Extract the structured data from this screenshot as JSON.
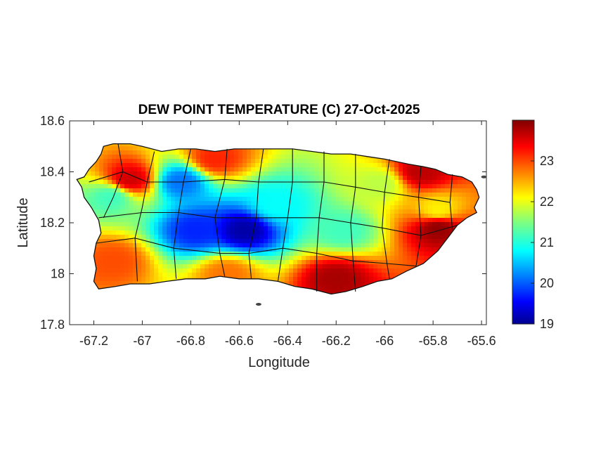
{
  "chart_data": {
    "type": "heatmap",
    "title": "DEW POINT TEMPERATURE (C) 27-Oct-2025",
    "xlabel": "Longitude",
    "ylabel": "Latitude",
    "xlim": [
      -67.3,
      -65.58
    ],
    "ylim": [
      17.8,
      18.6
    ],
    "x_ticks": [
      -67.2,
      -67,
      -66.8,
      -66.6,
      -66.4,
      -66.2,
      -66,
      -65.8,
      -65.6
    ],
    "x_tick_labels": [
      "-67.2",
      "-67",
      "-66.8",
      "-66.6",
      "-66.4",
      "-66.2",
      "-66",
      "-65.8",
      "-65.6"
    ],
    "y_ticks": [
      17.8,
      18,
      18.2,
      18.4,
      18.6
    ],
    "y_tick_labels": [
      "17.8",
      "18",
      "18.2",
      "18.4",
      "18.6"
    ],
    "colorbar": {
      "range": [
        19,
        24
      ],
      "ticks": [
        19,
        20,
        21,
        22,
        23
      ],
      "tick_labels": [
        "19",
        "20",
        "21",
        "22",
        "23"
      ],
      "colormap": "jet"
    },
    "grid": false,
    "field_description_values": [
      {
        "lon": -66.58,
        "lat": 18.17,
        "value": 19.2
      },
      {
        "lon": -66.78,
        "lat": 18.17,
        "value": 19.8
      },
      {
        "lon": -66.84,
        "lat": 18.36,
        "value": 20.2
      },
      {
        "lon": -66.45,
        "lat": 18.27,
        "value": 20.9
      },
      {
        "lon": -67.13,
        "lat": 18.3,
        "value": 21.2
      },
      {
        "lon": -66.17,
        "lat": 18.17,
        "value": 21.2
      },
      {
        "lon": -66.02,
        "lat": 18.35,
        "value": 21.8
      },
      {
        "lon": -65.78,
        "lat": 18.25,
        "value": 22.2
      },
      {
        "lon": -66.7,
        "lat": 18.45,
        "value": 23.2
      },
      {
        "lon": -67.05,
        "lat": 18.37,
        "value": 23.6
      },
      {
        "lon": -66.2,
        "lat": 17.98,
        "value": 23.8
      },
      {
        "lon": -65.78,
        "lat": 18.18,
        "value": 23.9
      },
      {
        "lon": -65.85,
        "lat": 18.4,
        "value": 23.7
      },
      {
        "lon": -67.12,
        "lat": 18.05,
        "value": 23.0
      },
      {
        "lon": -66.65,
        "lat": 18.0,
        "value": 22.8
      }
    ]
  }
}
